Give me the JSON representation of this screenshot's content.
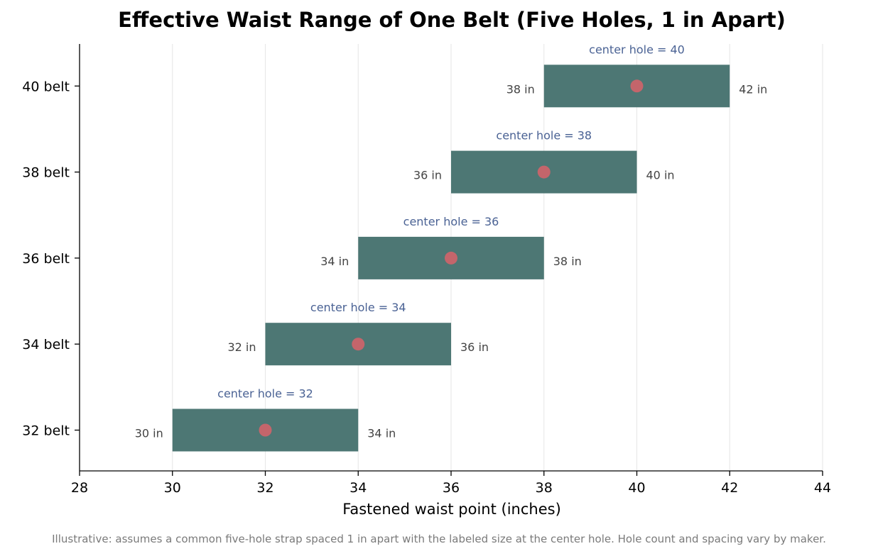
{
  "chart_data": {
    "type": "bar",
    "orientation": "horizontal-range",
    "title": "Effective Waist Range of One Belt (Five Holes, 1 in Apart)",
    "xlabel": "Fastened waist point (inches)",
    "ylabel": "",
    "xlim": [
      28,
      44
    ],
    "xticks": [
      28,
      30,
      32,
      34,
      36,
      38,
      40,
      42,
      44
    ],
    "grid": "vertical",
    "categories": [
      "32 belt",
      "34 belt",
      "36 belt",
      "38 belt",
      "40 belt"
    ],
    "ranges": [
      {
        "category": "32 belt",
        "start": 30,
        "end": 34,
        "center": 32,
        "start_label": "30 in",
        "end_label": "34 in",
        "center_label": "center hole = 32"
      },
      {
        "category": "34 belt",
        "start": 32,
        "end": 36,
        "center": 34,
        "start_label": "32 in",
        "end_label": "36 in",
        "center_label": "center hole = 34"
      },
      {
        "category": "36 belt",
        "start": 34,
        "end": 38,
        "center": 36,
        "start_label": "34 in",
        "end_label": "38 in",
        "center_label": "center hole = 36"
      },
      {
        "category": "38 belt",
        "start": 36,
        "end": 40,
        "center": 38,
        "start_label": "36 in",
        "end_label": "40 in",
        "center_label": "center hole = 38"
      },
      {
        "category": "40 belt",
        "start": 38,
        "end": 42,
        "center": 40,
        "start_label": "38 in",
        "end_label": "42 in",
        "center_label": "center hole = 40"
      }
    ],
    "colors": {
      "bar": "#4d7774",
      "center_dot": "#c4656b",
      "center_label": "#4a6294",
      "end_label": "#444444",
      "grid": "#e6e6e6"
    },
    "footnote": "Illustrative: assumes a common five-hole strap spaced 1 in apart with the labeled size at the center hole. Hole count and spacing vary by maker."
  }
}
